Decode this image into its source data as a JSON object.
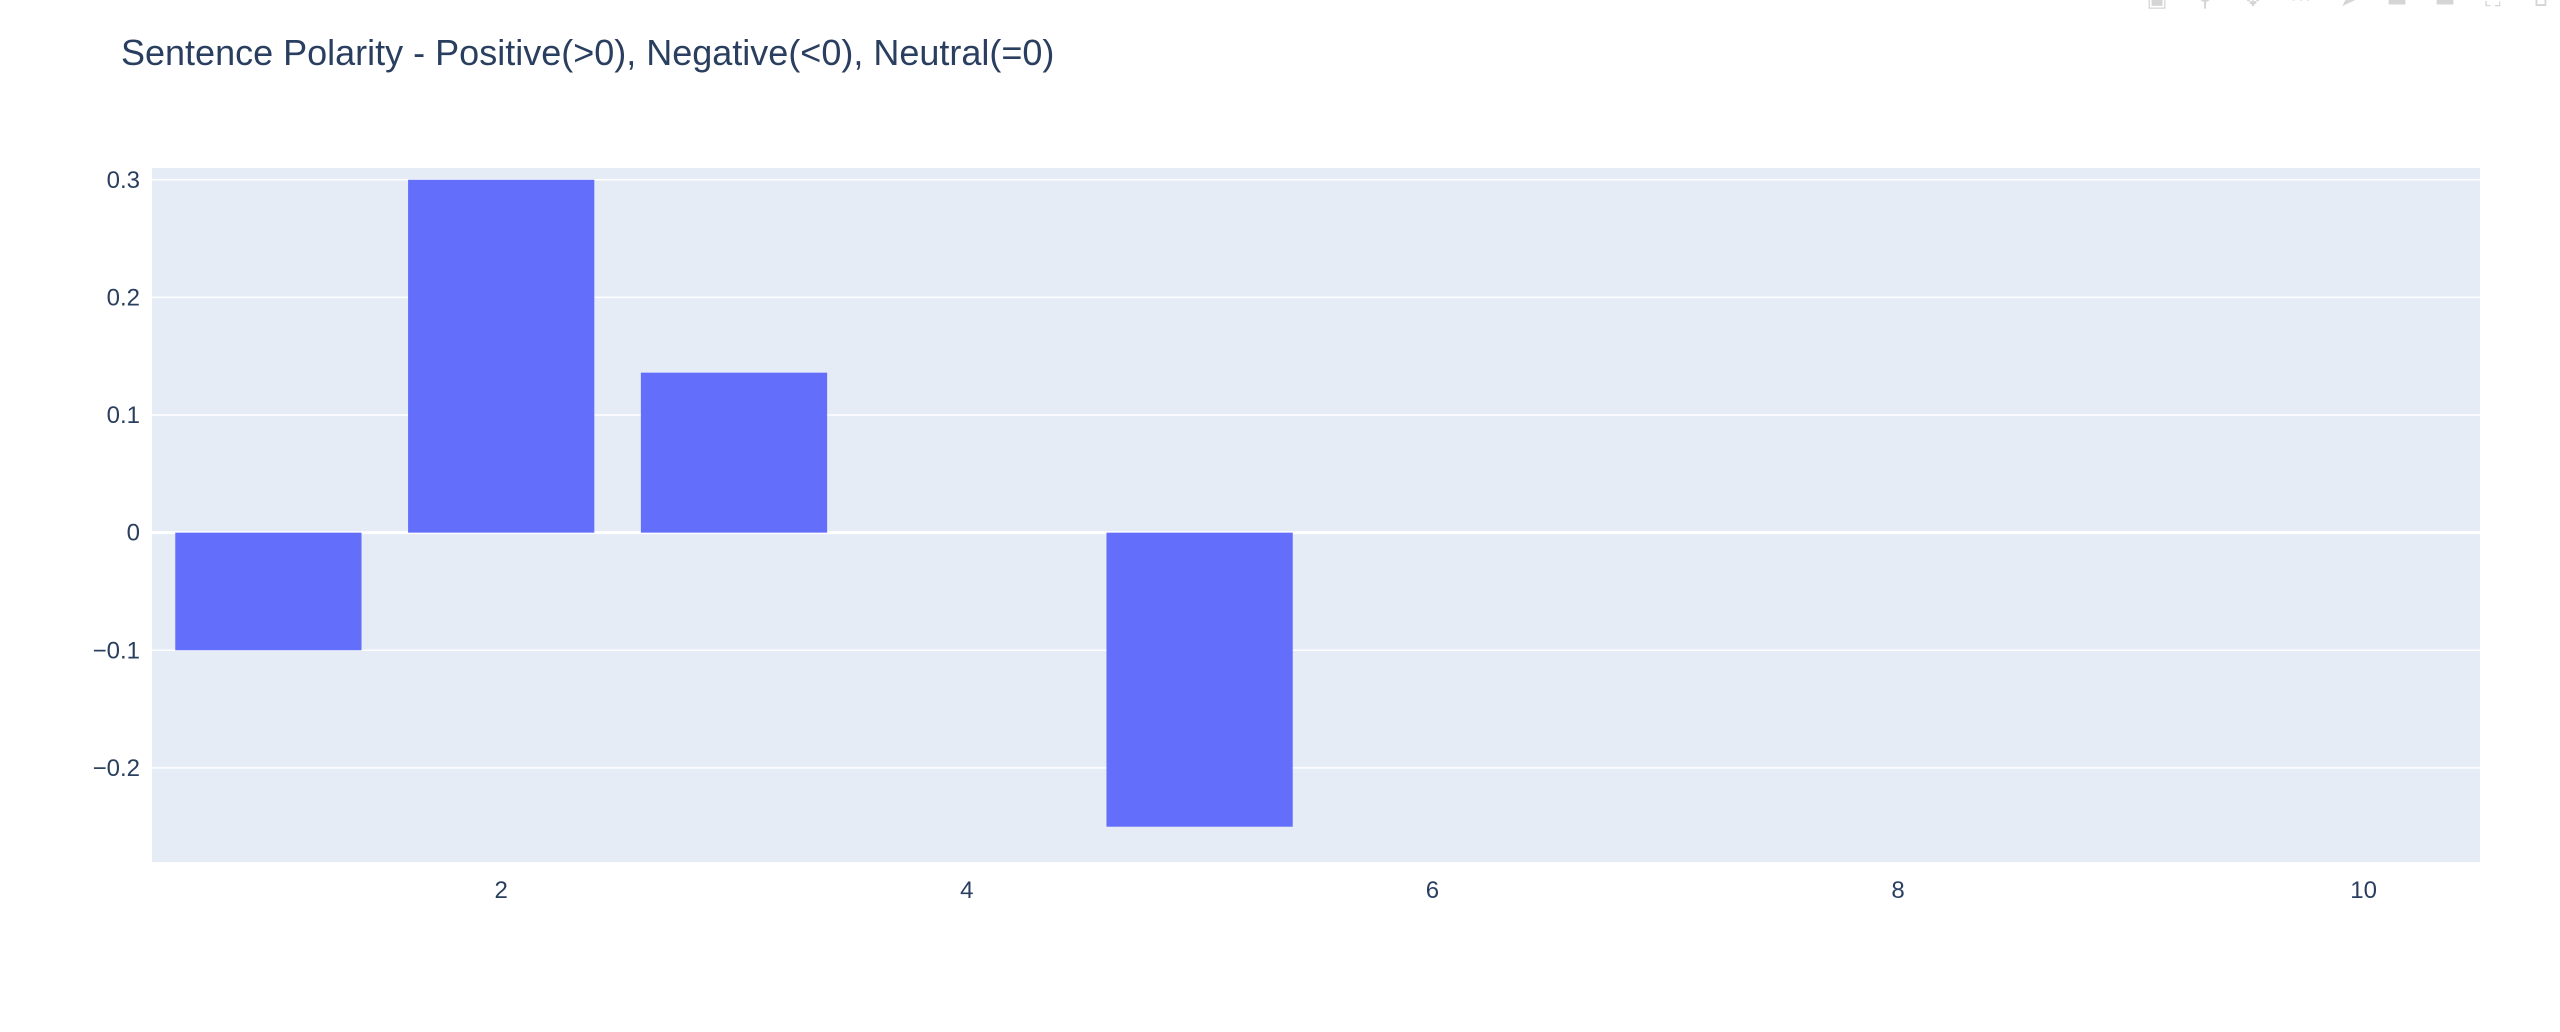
{
  "chart_data": {
    "type": "bar",
    "title": "Sentence Polarity - Positive(>0), Negative(<0), Neutral(=0)",
    "xlabel": "",
    "ylabel": "",
    "x": [
      1,
      2,
      3,
      4,
      5,
      6,
      7,
      8,
      9,
      10
    ],
    "values": [
      -0.1,
      0.3,
      0.136,
      0,
      -0.25,
      0,
      0,
      0,
      0,
      0
    ],
    "xlim": [
      0.5,
      10.5
    ],
    "ylim": [
      -0.28,
      0.31
    ],
    "x_ticks": [
      "2",
      "4",
      "6",
      "8",
      "10"
    ],
    "x_tick_values": [
      2,
      4,
      6,
      8,
      10
    ],
    "y_ticks": [
      "0.3",
      "0.2",
      "0.1",
      "0",
      "−0.1",
      "−0.2"
    ],
    "y_tick_values": [
      0.3,
      0.2,
      0.1,
      0,
      -0.1,
      -0.2
    ],
    "grid": true,
    "legend": "none",
    "colors": {
      "bar": "#636efa",
      "plot_bg": "#e5ecf6",
      "grid": "#ffffff",
      "text": "#2a3f5f"
    }
  },
  "modebar": {
    "icons": [
      "camera-icon",
      "zoom-icon",
      "pan-icon",
      "box-select-icon",
      "lasso-icon",
      "zoom-in-icon",
      "zoom-out-icon",
      "autoscale-icon",
      "reset-axes-icon"
    ]
  }
}
